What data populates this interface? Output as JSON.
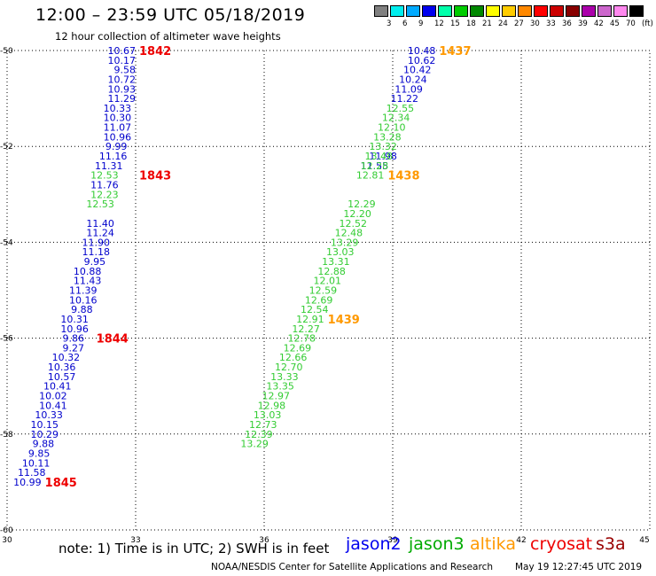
{
  "title": "12:00 – 23:59 UTC 05/18/2019",
  "subtitle": "12 hour collection of altimeter wave heights",
  "legend": {
    "colors": [
      "#808080",
      "#00eeee",
      "#00aaff",
      "#0000ee",
      "#00ffaa",
      "#00cc00",
      "#008800",
      "#ffff00",
      "#ffcc00",
      "#ff8800",
      "#ff0000",
      "#cc0000",
      "#880000",
      "#aa00aa",
      "#cc66cc",
      "#ff88ee",
      "#000000"
    ],
    "labels": [
      "3",
      "6",
      "9",
      "12",
      "15",
      "18",
      "21",
      "24",
      "27",
      "30",
      "33",
      "36",
      "39",
      "42",
      "45",
      "70",
      "(ft)"
    ]
  },
  "axes": {
    "x_ticks": [
      "30",
      "33",
      "36",
      "39",
      "42",
      "45"
    ],
    "y_ticks": [
      "-50",
      "-52",
      "-54",
      "-56",
      "-58",
      "-60"
    ]
  },
  "chart_data": {
    "type": "scatter",
    "xlim": [
      30,
      45
    ],
    "ylim": [
      -60,
      -50
    ],
    "grid": true,
    "series": [
      {
        "name": "jason2",
        "color": "#0000cc",
        "points": [
          {
            "x": 33.0,
            "y": -50.0,
            "v": "10.67"
          },
          {
            "x": 33.0,
            "y": -50.2,
            "v": "10.17"
          },
          {
            "x": 33.0,
            "y": -50.4,
            "v": "9.58"
          },
          {
            "x": 33.0,
            "y": -50.6,
            "v": "10.72"
          },
          {
            "x": 33.0,
            "y": -50.8,
            "v": "10.93"
          },
          {
            "x": 33.0,
            "y": -51.0,
            "v": "11.29"
          },
          {
            "x": 32.9,
            "y": -51.2,
            "v": "10.33"
          },
          {
            "x": 32.9,
            "y": -51.4,
            "v": "10.30"
          },
          {
            "x": 32.9,
            "y": -51.6,
            "v": "11.07"
          },
          {
            "x": 32.9,
            "y": -51.8,
            "v": "10.96"
          },
          {
            "x": 32.8,
            "y": -52.0,
            "v": "9.99"
          },
          {
            "x": 32.8,
            "y": -52.2,
            "v": "11.16"
          },
          {
            "x": 32.7,
            "y": -52.4,
            "v": "11.31"
          },
          {
            "x": 32.6,
            "y": -52.8,
            "v": "11.76"
          },
          {
            "x": 32.5,
            "y": -53.6,
            "v": "11.40"
          },
          {
            "x": 32.5,
            "y": -53.8,
            "v": "11.24"
          },
          {
            "x": 32.4,
            "y": -54.0,
            "v": "11.90"
          },
          {
            "x": 32.4,
            "y": -54.2,
            "v": "11.18"
          },
          {
            "x": 32.3,
            "y": -54.4,
            "v": "9.95"
          },
          {
            "x": 32.2,
            "y": -54.6,
            "v": "10.88"
          },
          {
            "x": 32.2,
            "y": -54.8,
            "v": "11.43"
          },
          {
            "x": 32.1,
            "y": -55.0,
            "v": "11.39"
          },
          {
            "x": 32.1,
            "y": -55.2,
            "v": "10.16"
          },
          {
            "x": 32.0,
            "y": -55.4,
            "v": "9.88"
          },
          {
            "x": 31.9,
            "y": -55.6,
            "v": "10.31"
          },
          {
            "x": 31.9,
            "y": -55.8,
            "v": "10.96"
          },
          {
            "x": 31.8,
            "y": -56.0,
            "v": "9.86"
          },
          {
            "x": 31.8,
            "y": -56.2,
            "v": "9.27"
          },
          {
            "x": 31.7,
            "y": -56.4,
            "v": "10.32"
          },
          {
            "x": 31.6,
            "y": -56.6,
            "v": "10.36"
          },
          {
            "x": 31.6,
            "y": -56.8,
            "v": "10.57"
          },
          {
            "x": 31.5,
            "y": -57.0,
            "v": "10.41"
          },
          {
            "x": 31.4,
            "y": -57.2,
            "v": "10.02"
          },
          {
            "x": 31.4,
            "y": -57.4,
            "v": "10.41"
          },
          {
            "x": 31.3,
            "y": -57.6,
            "v": "10.33"
          },
          {
            "x": 31.2,
            "y": -57.8,
            "v": "10.15"
          },
          {
            "x": 31.2,
            "y": -58.0,
            "v": "10.29"
          },
          {
            "x": 31.1,
            "y": -58.2,
            "v": "9.88"
          },
          {
            "x": 31.0,
            "y": -58.4,
            "v": "9.85"
          },
          {
            "x": 31.0,
            "y": -58.6,
            "v": "10.11"
          },
          {
            "x": 30.9,
            "y": -58.8,
            "v": "11.58"
          },
          {
            "x": 30.8,
            "y": -59.0,
            "v": "10.99"
          },
          {
            "x": 40.0,
            "y": -50.0,
            "v": "10.48"
          },
          {
            "x": 40.0,
            "y": -50.2,
            "v": "10.62"
          },
          {
            "x": 39.9,
            "y": -50.4,
            "v": "10.42"
          },
          {
            "x": 39.8,
            "y": -50.6,
            "v": "10.24"
          },
          {
            "x": 39.7,
            "y": -50.8,
            "v": "11.09"
          },
          {
            "x": 39.6,
            "y": -51.0,
            "v": "11.22"
          },
          {
            "x": 39.1,
            "y": -52.2,
            "v": "11.98"
          },
          {
            "x": 38.9,
            "y": -52.4,
            "v": "11.55"
          }
        ]
      },
      {
        "name": "jason3",
        "color": "#33cc33",
        "points": [
          {
            "x": 32.6,
            "y": -52.6,
            "v": "12.53"
          },
          {
            "x": 32.6,
            "y": -53.0,
            "v": "12.23"
          },
          {
            "x": 32.5,
            "y": -53.2,
            "v": "12.53"
          },
          {
            "x": 39.5,
            "y": -51.2,
            "v": "12.55"
          },
          {
            "x": 39.4,
            "y": -51.4,
            "v": "12.34"
          },
          {
            "x": 39.3,
            "y": -51.6,
            "v": "12.10"
          },
          {
            "x": 39.2,
            "y": -51.8,
            "v": "13.28"
          },
          {
            "x": 39.1,
            "y": -52.0,
            "v": "13.32"
          },
          {
            "x": 39.0,
            "y": -52.2,
            "v": "13.48"
          },
          {
            "x": 38.9,
            "y": -52.4,
            "v": "12.28"
          },
          {
            "x": 38.8,
            "y": -52.6,
            "v": "12.81"
          },
          {
            "x": 38.6,
            "y": -53.2,
            "v": "12.29"
          },
          {
            "x": 38.5,
            "y": -53.4,
            "v": "12.20"
          },
          {
            "x": 38.4,
            "y": -53.6,
            "v": "12.52"
          },
          {
            "x": 38.3,
            "y": -53.8,
            "v": "12.48"
          },
          {
            "x": 38.2,
            "y": -54.0,
            "v": "13.29"
          },
          {
            "x": 38.1,
            "y": -54.2,
            "v": "13.03"
          },
          {
            "x": 38.0,
            "y": -54.4,
            "v": "13.31"
          },
          {
            "x": 37.9,
            "y": -54.6,
            "v": "12.88"
          },
          {
            "x": 37.8,
            "y": -54.8,
            "v": "12.01"
          },
          {
            "x": 37.7,
            "y": -55.0,
            "v": "12.59"
          },
          {
            "x": 37.6,
            "y": -55.2,
            "v": "12.69"
          },
          {
            "x": 37.5,
            "y": -55.4,
            "v": "12.54"
          },
          {
            "x": 37.4,
            "y": -55.6,
            "v": "12.91"
          },
          {
            "x": 37.3,
            "y": -55.8,
            "v": "12.27"
          },
          {
            "x": 37.2,
            "y": -56.0,
            "v": "12.78"
          },
          {
            "x": 37.1,
            "y": -56.2,
            "v": "12.69"
          },
          {
            "x": 37.0,
            "y": -56.4,
            "v": "12.66"
          },
          {
            "x": 36.9,
            "y": -56.6,
            "v": "12.70"
          },
          {
            "x": 36.8,
            "y": -56.8,
            "v": "13.33"
          },
          {
            "x": 36.7,
            "y": -57.0,
            "v": "13.35"
          },
          {
            "x": 36.6,
            "y": -57.2,
            "v": "12.97"
          },
          {
            "x": 36.5,
            "y": -57.4,
            "v": "12.98"
          },
          {
            "x": 36.4,
            "y": -57.6,
            "v": "13.03"
          },
          {
            "x": 36.3,
            "y": -57.8,
            "v": "12.73"
          },
          {
            "x": 36.2,
            "y": -58.0,
            "v": "12.39"
          },
          {
            "x": 36.1,
            "y": -58.2,
            "v": "13.29"
          }
        ]
      }
    ],
    "time_labels": [
      {
        "text": "1842",
        "color": "#ee0000",
        "x": 33.0,
        "y": -50.0
      },
      {
        "text": "1843",
        "color": "#ee0000",
        "x": 33.0,
        "y": -52.6
      },
      {
        "text": "1844",
        "color": "#ee0000",
        "x": 32.0,
        "y": -56.0
      },
      {
        "text": "1845",
        "color": "#ee0000",
        "x": 30.8,
        "y": -59.0
      },
      {
        "text": "1437",
        "color": "#ff9900",
        "x": 40.0,
        "y": -50.0
      },
      {
        "text": "1438",
        "color": "#ff9900",
        "x": 38.8,
        "y": -52.6
      },
      {
        "text": "1439",
        "color": "#ff9900",
        "x": 37.4,
        "y": -55.6
      }
    ]
  },
  "footer": {
    "note": "note:  1) Time is in UTC;  2) SWH is in feet",
    "satellites": [
      {
        "name": "jason2",
        "color": "#0000ee"
      },
      {
        "name": "jason3",
        "color": "#00aa00"
      },
      {
        "name": "altika",
        "color": "#ff9900"
      },
      {
        "name": "cryosat",
        "color": "#ee0000"
      },
      {
        "name": "s3a",
        "color": "#990000"
      }
    ],
    "credit": "NOAA/NESDIS Center for Satellite Applications and Research",
    "timestamp": "May 19 12:27:45 UTC 2019"
  }
}
